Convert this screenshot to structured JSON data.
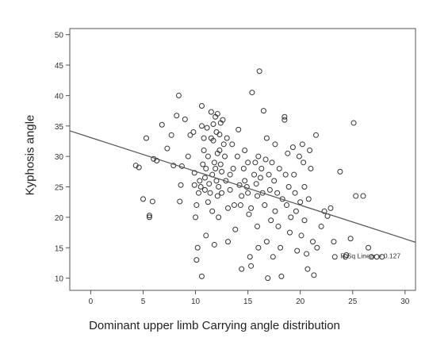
{
  "chart_data": {
    "type": "scatter",
    "title": "",
    "xlabel": "Dominant upper limb Carrying angle distribution",
    "ylabel": "Kyphosis angle",
    "xlim": [
      -2,
      31
    ],
    "ylim": [
      8,
      51
    ],
    "x_ticks": [
      "0",
      "5",
      "10",
      "15",
      "20",
      "25",
      "30"
    ],
    "y_ticks": [
      "10",
      "15",
      "20",
      "25",
      "30",
      "35",
      "40",
      "45",
      "50"
    ],
    "grid": false,
    "fit_line": {
      "x": [
        -2,
        31
      ],
      "y": [
        34.2,
        15.9
      ]
    },
    "annotation": "R Sq Linear = 0.127",
    "points": [
      [
        4.3,
        28.5
      ],
      [
        4.6,
        28.2
      ],
      [
        5.0,
        23.0
      ],
      [
        5.3,
        33.0
      ],
      [
        5.6,
        20.3
      ],
      [
        5.6,
        20.0
      ],
      [
        5.9,
        22.6
      ],
      [
        6.0,
        29.6
      ],
      [
        6.3,
        29.3
      ],
      [
        6.8,
        35.2
      ],
      [
        7.3,
        31.3
      ],
      [
        7.7,
        33.5
      ],
      [
        7.9,
        28.5
      ],
      [
        8.2,
        36.7
      ],
      [
        8.4,
        40.0
      ],
      [
        8.5,
        22.6
      ],
      [
        8.6,
        25.3
      ],
      [
        8.7,
        28.4
      ],
      [
        9.0,
        36.1
      ],
      [
        9.3,
        30.0
      ],
      [
        9.5,
        33.5
      ],
      [
        9.8,
        34.0
      ],
      [
        9.9,
        27.3
      ],
      [
        9.9,
        25.3
      ],
      [
        10.0,
        20.0
      ],
      [
        10.1,
        22.0
      ],
      [
        10.1,
        13.0
      ],
      [
        10.2,
        15.0
      ],
      [
        10.3,
        24.0
      ],
      [
        10.4,
        26.0
      ],
      [
        10.5,
        25.0
      ],
      [
        10.6,
        35.0
      ],
      [
        10.6,
        38.3
      ],
      [
        10.6,
        10.3
      ],
      [
        10.7,
        28.7
      ],
      [
        10.8,
        33.0
      ],
      [
        10.8,
        31.0
      ],
      [
        10.9,
        26.5
      ],
      [
        10.9,
        24.5
      ],
      [
        11.0,
        28.0
      ],
      [
        11.0,
        17.0
      ],
      [
        11.1,
        34.7
      ],
      [
        11.2,
        30.0
      ],
      [
        11.2,
        22.5
      ],
      [
        11.3,
        25.5
      ],
      [
        11.4,
        24.0
      ],
      [
        11.5,
        37.3
      ],
      [
        11.5,
        33.0
      ],
      [
        11.6,
        27.0
      ],
      [
        11.6,
        21.0
      ],
      [
        11.7,
        35.3
      ],
      [
        11.7,
        32.6
      ],
      [
        11.8,
        29.0
      ],
      [
        11.8,
        15.5
      ],
      [
        11.9,
        36.5
      ],
      [
        11.9,
        28.0
      ],
      [
        12.0,
        34.0
      ],
      [
        12.0,
        26.0
      ],
      [
        12.1,
        37.0
      ],
      [
        12.1,
        30.5
      ],
      [
        12.1,
        23.5
      ],
      [
        12.2,
        25.0
      ],
      [
        12.2,
        20.0
      ],
      [
        12.3,
        33.6
      ],
      [
        12.3,
        31.0
      ],
      [
        12.4,
        35.5
      ],
      [
        12.4,
        28.7
      ],
      [
        12.5,
        27.5
      ],
      [
        12.5,
        24.0
      ],
      [
        12.6,
        36.0
      ],
      [
        12.7,
        32.0
      ],
      [
        12.8,
        30.0
      ],
      [
        12.9,
        26.0
      ],
      [
        13.0,
        33.0
      ],
      [
        13.1,
        21.5
      ],
      [
        13.1,
        16.0
      ],
      [
        13.3,
        27.0
      ],
      [
        13.3,
        24.5
      ],
      [
        13.5,
        32.0
      ],
      [
        13.6,
        28.0
      ],
      [
        13.7,
        22.0
      ],
      [
        13.8,
        18.0
      ],
      [
        14.0,
        30.0
      ],
      [
        14.1,
        34.4
      ],
      [
        14.2,
        25.3
      ],
      [
        14.3,
        22.0
      ],
      [
        14.4,
        23.5
      ],
      [
        14.4,
        11.5
      ],
      [
        14.6,
        28.0
      ],
      [
        14.7,
        26.0
      ],
      [
        14.7,
        31.0
      ],
      [
        14.9,
        25.0
      ],
      [
        15.0,
        29.0
      ],
      [
        15.0,
        24.0
      ],
      [
        15.1,
        20.5
      ],
      [
        15.2,
        13.5
      ],
      [
        15.3,
        21.5
      ],
      [
        15.3,
        12.0
      ],
      [
        15.4,
        40.5
      ],
      [
        15.6,
        27.0
      ],
      [
        15.7,
        29.0
      ],
      [
        15.8,
        25.5
      ],
      [
        15.9,
        23.5
      ],
      [
        15.9,
        18.5
      ],
      [
        16.0,
        30.0
      ],
      [
        16.0,
        15.0
      ],
      [
        16.1,
        44.0
      ],
      [
        16.2,
        26.5
      ],
      [
        16.3,
        28.0
      ],
      [
        16.4,
        24.0
      ],
      [
        16.5,
        37.5
      ],
      [
        16.6,
        22.0
      ],
      [
        16.7,
        29.5
      ],
      [
        16.8,
        33.0
      ],
      [
        16.8,
        16.0
      ],
      [
        16.9,
        10.0
      ],
      [
        17.0,
        27.0
      ],
      [
        17.1,
        24.5
      ],
      [
        17.2,
        19.5
      ],
      [
        17.3,
        29.0
      ],
      [
        17.4,
        13.5
      ],
      [
        17.5,
        26.0
      ],
      [
        17.6,
        32.0
      ],
      [
        17.6,
        21.0
      ],
      [
        17.8,
        24.0
      ],
      [
        17.9,
        18.5
      ],
      [
        18.0,
        28.0
      ],
      [
        18.1,
        15.0
      ],
      [
        18.2,
        10.3
      ],
      [
        18.3,
        23.0
      ],
      [
        18.5,
        36.5
      ],
      [
        18.5,
        36.0
      ],
      [
        18.6,
        27.0
      ],
      [
        18.7,
        22.0
      ],
      [
        18.8,
        30.5
      ],
      [
        18.9,
        25.0
      ],
      [
        19.0,
        17.5
      ],
      [
        19.1,
        20.0
      ],
      [
        19.3,
        31.5
      ],
      [
        19.4,
        27.0
      ],
      [
        19.5,
        24.0
      ],
      [
        19.6,
        21.0
      ],
      [
        19.7,
        14.5
      ],
      [
        19.9,
        30.0
      ],
      [
        20.0,
        22.5
      ],
      [
        20.1,
        17.0
      ],
      [
        20.2,
        32.0
      ],
      [
        20.3,
        29.0
      ],
      [
        20.4,
        25.0
      ],
      [
        20.4,
        19.5
      ],
      [
        20.6,
        14.0
      ],
      [
        20.7,
        11.5
      ],
      [
        20.8,
        23.0
      ],
      [
        20.9,
        31.0
      ],
      [
        21.0,
        28.0
      ],
      [
        21.2,
        16.0
      ],
      [
        21.3,
        10.5
      ],
      [
        21.5,
        33.5
      ],
      [
        21.6,
        15.0
      ],
      [
        22.0,
        18.5
      ],
      [
        22.3,
        21.0
      ],
      [
        22.6,
        20.2
      ],
      [
        22.9,
        21.5
      ],
      [
        23.2,
        16.0
      ],
      [
        23.3,
        13.5
      ],
      [
        23.8,
        27.5
      ],
      [
        24.3,
        13.5
      ],
      [
        24.8,
        16.5
      ],
      [
        25.1,
        35.5
      ],
      [
        25.3,
        23.5
      ],
      [
        26.0,
        23.5
      ],
      [
        26.5,
        15.0
      ],
      [
        26.8,
        13.5
      ],
      [
        27.3,
        13.5
      ],
      [
        27.8,
        13.5
      ],
      [
        24.4,
        13.8
      ]
    ]
  }
}
